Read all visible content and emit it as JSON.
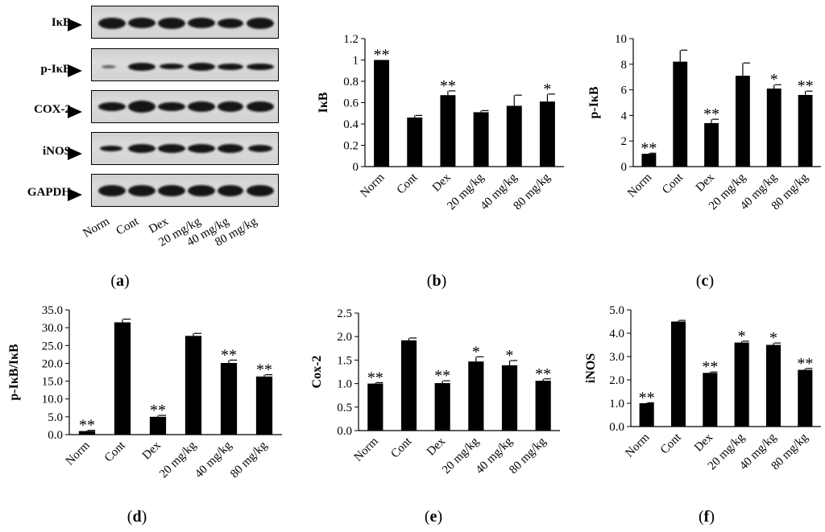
{
  "figure": {
    "panel_letters": [
      "a",
      "b",
      "c",
      "d",
      "e",
      "f"
    ]
  },
  "blot": {
    "rows": [
      "IκB",
      "p-IκB",
      "COX-2",
      "iNOS",
      "GAPDH"
    ],
    "lanes": [
      "Norm",
      "Cont",
      "Dex",
      "20 mg/kg",
      "40 mg/kg",
      "80 mg/kg"
    ]
  },
  "chart_data": [
    {
      "panel": "b",
      "type": "bar",
      "ylabel": "IκB",
      "categories": [
        "Norm",
        "Cont",
        "Dex",
        "20 mg/kg",
        "40 mg/kg",
        "80 mg/kg"
      ],
      "values": [
        1.0,
        0.46,
        0.67,
        0.51,
        0.57,
        0.61
      ],
      "errors": [
        0.0,
        0.02,
        0.04,
        0.015,
        0.1,
        0.07
      ],
      "annotations": [
        "**",
        "",
        "**",
        "",
        "",
        "*"
      ],
      "ylim": [
        0,
        1.2
      ],
      "yticks": [
        "0",
        "0.2",
        "0.4",
        "0.6",
        "0.8",
        "1",
        "1.2"
      ]
    },
    {
      "panel": "c",
      "type": "bar",
      "ylabel": "p-IκB",
      "categories": [
        "Norm",
        "Cont",
        "Dex",
        "20 mg/kg",
        "40 mg/kg",
        "80 mg/kg"
      ],
      "values": [
        1.0,
        8.2,
        3.4,
        7.1,
        6.1,
        5.6
      ],
      "errors": [
        0.05,
        0.9,
        0.3,
        1.0,
        0.3,
        0.3
      ],
      "annotations": [
        "**",
        "",
        "**",
        "",
        "*",
        "**"
      ],
      "ylim": [
        0,
        10
      ],
      "yticks": [
        "0",
        "2",
        "4",
        "6",
        "8",
        "10"
      ]
    },
    {
      "panel": "d",
      "type": "bar",
      "ylabel": "p-IκB/IκB",
      "categories": [
        "Norm",
        "Cont",
        "Dex",
        "20 mg/kg",
        "40 mg/kg",
        "80 mg/kg"
      ],
      "values": [
        1.0,
        31.5,
        5.0,
        27.7,
        20.1,
        16.3
      ],
      "errors": [
        0.2,
        0.9,
        0.4,
        0.7,
        0.8,
        0.5
      ],
      "annotations": [
        "**",
        "",
        "**",
        "",
        "**",
        "**"
      ],
      "ylim": [
        0,
        35
      ],
      "yticks": [
        "0.0",
        "5.0",
        "10.0",
        "15.0",
        "20.0",
        "25.0",
        "30.0",
        "35.0"
      ]
    },
    {
      "panel": "e",
      "type": "bar",
      "ylabel": "Cox-2",
      "categories": [
        "Norm",
        "Cont",
        "Dex",
        "20 mg/kg",
        "40 mg/kg",
        "80 mg/kg"
      ],
      "values": [
        1.0,
        1.92,
        1.01,
        1.47,
        1.39,
        1.06
      ],
      "errors": [
        0.02,
        0.05,
        0.05,
        0.1,
        0.1,
        0.04
      ],
      "annotations": [
        "**",
        "",
        "**",
        "*",
        "*",
        "**"
      ],
      "ylim": [
        0,
        2.5
      ],
      "yticks": [
        "0.0",
        "0.5",
        "1.0",
        "1.5",
        "2.0",
        "2.5"
      ]
    },
    {
      "panel": "f",
      "type": "bar",
      "ylabel": "iNOS",
      "categories": [
        "Norm",
        "Cont",
        "Dex",
        "20 mg/kg",
        "40 mg/kg",
        "80 mg/kg"
      ],
      "values": [
        1.0,
        4.5,
        2.3,
        3.6,
        3.5,
        2.43
      ],
      "errors": [
        0.02,
        0.05,
        0.04,
        0.06,
        0.08,
        0.06
      ],
      "annotations": [
        "**",
        "",
        "**",
        "*",
        "*",
        "**"
      ],
      "ylim": [
        0,
        5
      ],
      "yticks": [
        "0.0",
        "1.0",
        "2.0",
        "3.0",
        "4.0",
        "5.0"
      ]
    }
  ]
}
